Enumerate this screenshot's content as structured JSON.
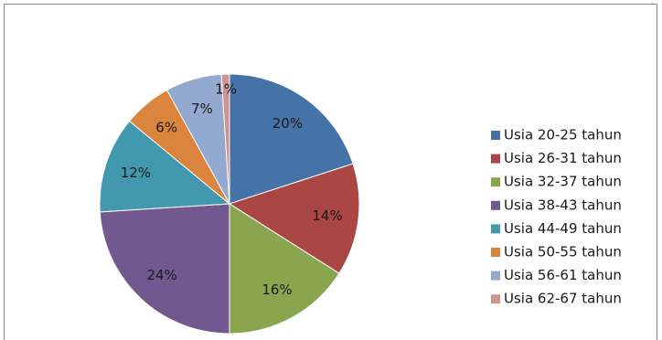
{
  "chart_data": {
    "type": "pie",
    "categories": [
      "Usia 20-25 tahun",
      "Usia 26-31 tahun",
      "Usia 32-37 tahun",
      "Usia 38-43 tahun",
      "Usia 44-49 tahun",
      "Usia 50-55 tahun",
      "Usia 56-61 tahun",
      "Usia 62-67 tahun"
    ],
    "values": [
      20,
      14,
      16,
      24,
      12,
      6,
      7,
      1
    ],
    "value_labels": [
      "20%",
      "14%",
      "16%",
      "24%",
      "12%",
      "6%",
      "7%",
      "1%"
    ],
    "colors": [
      "#4572a7",
      "#aa4643",
      "#89a54e",
      "#71588f",
      "#4198af",
      "#db843d",
      "#93a9cf",
      "#d19392"
    ],
    "legend": "right"
  }
}
